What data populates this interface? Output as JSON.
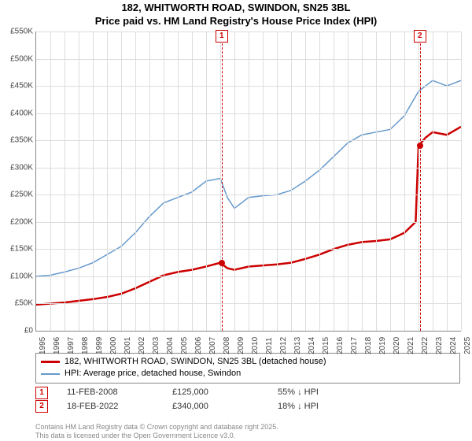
{
  "title_l1": "182, WHITWORTH ROAD, SWINDON, SN25 3BL",
  "title_l2": "Price paid vs. HM Land Registry's House Price Index (HPI)",
  "chart": {
    "type": "line",
    "ylim": [
      0,
      550
    ],
    "ytick_step": 50,
    "y_unit_prefix": "£",
    "y_unit_suffix": "K",
    "xlim": [
      1995,
      2025
    ],
    "xtick_step": 1,
    "grid_color": "#dddddd",
    "background_color": "#ffffff",
    "series": [
      {
        "name": "red",
        "color": "#cc0000",
        "width": 2.5,
        "values": [
          [
            1995,
            48
          ],
          [
            1996,
            50
          ],
          [
            1997,
            52
          ],
          [
            1998,
            55
          ],
          [
            1999,
            58
          ],
          [
            2000,
            62
          ],
          [
            2001,
            68
          ],
          [
            2002,
            78
          ],
          [
            2003,
            90
          ],
          [
            2004,
            102
          ],
          [
            2005,
            108
          ],
          [
            2006,
            112
          ],
          [
            2007,
            118
          ],
          [
            2008,
            125
          ],
          [
            2008.5,
            115
          ],
          [
            2009,
            112
          ],
          [
            2010,
            118
          ],
          [
            2011,
            120
          ],
          [
            2012,
            122
          ],
          [
            2013,
            125
          ],
          [
            2014,
            132
          ],
          [
            2015,
            140
          ],
          [
            2016,
            150
          ],
          [
            2017,
            158
          ],
          [
            2018,
            163
          ],
          [
            2019,
            165
          ],
          [
            2020,
            168
          ],
          [
            2021,
            180
          ],
          [
            2021.8,
            200
          ],
          [
            2022,
            340
          ],
          [
            2022.5,
            355
          ],
          [
            2023,
            365
          ],
          [
            2024,
            360
          ],
          [
            2025,
            375
          ]
        ]
      },
      {
        "name": "blue",
        "color": "#6699cc",
        "width": 1.5,
        "values": [
          [
            1995,
            100
          ],
          [
            1996,
            102
          ],
          [
            1997,
            108
          ],
          [
            1998,
            115
          ],
          [
            1999,
            125
          ],
          [
            2000,
            140
          ],
          [
            2001,
            155
          ],
          [
            2002,
            180
          ],
          [
            2003,
            210
          ],
          [
            2004,
            235
          ],
          [
            2005,
            245
          ],
          [
            2006,
            255
          ],
          [
            2007,
            275
          ],
          [
            2008,
            280
          ],
          [
            2008.5,
            245
          ],
          [
            2009,
            225
          ],
          [
            2010,
            245
          ],
          [
            2011,
            248
          ],
          [
            2012,
            250
          ],
          [
            2013,
            258
          ],
          [
            2014,
            275
          ],
          [
            2015,
            295
          ],
          [
            2016,
            320
          ],
          [
            2017,
            345
          ],
          [
            2018,
            360
          ],
          [
            2019,
            365
          ],
          [
            2020,
            370
          ],
          [
            2021,
            395
          ],
          [
            2022,
            440
          ],
          [
            2023,
            460
          ],
          [
            2024,
            450
          ],
          [
            2025,
            460
          ]
        ]
      }
    ],
    "markers": [
      {
        "num": "1",
        "year": 2008.1,
        "price": 125
      },
      {
        "num": "2",
        "year": 2022.1,
        "price": 340
      }
    ]
  },
  "legend": {
    "red": "182, WHITWORTH ROAD, SWINDON, SN25 3BL (detached house)",
    "blue": "HPI: Average price, detached house, Swindon"
  },
  "sales": [
    {
      "num": "1",
      "date": "11-FEB-2008",
      "price": "£125,000",
      "delta": "55% ↓ HPI"
    },
    {
      "num": "2",
      "date": "18-FEB-2022",
      "price": "£340,000",
      "delta": "18% ↓ HPI"
    }
  ],
  "attribution_l1": "Contains HM Land Registry data © Crown copyright and database right 2025.",
  "attribution_l2": "This data is licensed under the Open Government Licence v3.0."
}
